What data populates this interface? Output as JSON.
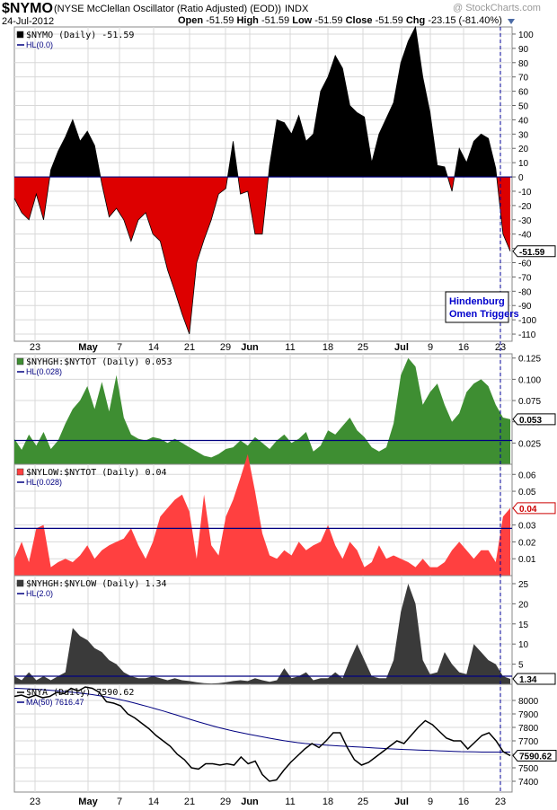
{
  "header": {
    "symbol": "$NYMO",
    "description": "(NYSE McClellan Oscillator (Ratio Adjusted) (EOD))",
    "exchange": "INDX",
    "watermark": "@ StockCharts.com",
    "date": "24-Jul-2012",
    "ohlc": {
      "open_label": "Open",
      "open": "-51.59",
      "high_label": "High",
      "high": "-51.59",
      "low_label": "Low",
      "low": "-51.59",
      "close_label": "Close",
      "close": "-51.59",
      "chg_label": "Chg",
      "chg": "-23.15 (-81.40%)"
    }
  },
  "x_axis": {
    "labels": [
      {
        "text": "23",
        "bold": false
      },
      {
        "text": "May",
        "bold": true
      },
      {
        "text": "7",
        "bold": false
      },
      {
        "text": "14",
        "bold": false
      },
      {
        "text": "21",
        "bold": false
      },
      {
        "text": "29",
        "bold": false
      },
      {
        "text": "Jun",
        "bold": true
      },
      {
        "text": "11",
        "bold": false
      },
      {
        "text": "18",
        "bold": false
      },
      {
        "text": "25",
        "bold": false
      },
      {
        "text": "Jul",
        "bold": true
      },
      {
        "text": "9",
        "bold": false
      },
      {
        "text": "16",
        "bold": false
      },
      {
        "text": "23",
        "bold": false
      }
    ]
  },
  "annotation": {
    "line1": "Hindenburg",
    "line2": "Omen Triggers"
  },
  "colors": {
    "black_fill": "#000000",
    "red_fill": "#dd0000",
    "green_fill": "#3e8e32",
    "light_red_fill": "#ff4040",
    "gray_fill": "#3a3a3a",
    "hl_line": "#000080",
    "ma_line": "#000080",
    "marker": "#000099",
    "grid": "#d8d8d8"
  },
  "chart_data": [
    {
      "type": "area",
      "panel": "nymo",
      "legend": "$NYMO (Daily) -51.59",
      "hl_legend": "HL(0.0)",
      "hl_value": 0,
      "last_value_label": "-51.59",
      "ylim": [
        -115,
        105
      ],
      "yticks": [
        100,
        90,
        80,
        70,
        60,
        50,
        40,
        30,
        20,
        10,
        0,
        -10,
        -20,
        -30,
        -40,
        -50,
        -60,
        -70,
        -80,
        -90,
        -100,
        -110
      ],
      "values": [
        -15,
        -25,
        -30,
        -12,
        -30,
        5,
        18,
        28,
        40,
        25,
        32,
        22,
        -5,
        -28,
        -22,
        -30,
        -45,
        -30,
        -25,
        -40,
        -45,
        -65,
        -80,
        -96,
        -110,
        -60,
        -44,
        -30,
        -12,
        -8,
        25,
        -12,
        -10,
        -40,
        -40,
        8,
        40,
        38,
        30,
        43,
        25,
        30,
        60,
        70,
        85,
        76,
        50,
        45,
        42,
        10,
        30,
        41,
        52,
        80,
        95,
        105,
        70,
        45,
        8,
        7,
        -10,
        20,
        10,
        25,
        30,
        27,
        6,
        -40,
        -52
      ]
    },
    {
      "type": "area",
      "panel": "nyhgh",
      "legend": "$NYHGH:$NYTOT (Daily) 0.053",
      "hl_legend": "HL(0.028)",
      "hl_value": 0.028,
      "last_value_label": "0.053",
      "ylim": [
        0,
        0.13
      ],
      "yticks": [
        0.125,
        0.1,
        0.075,
        0.05,
        0.025
      ],
      "values": [
        0.03,
        0.017,
        0.035,
        0.022,
        0.038,
        0.018,
        0.028,
        0.048,
        0.065,
        0.075,
        0.092,
        0.065,
        0.097,
        0.062,
        0.105,
        0.055,
        0.035,
        0.03,
        0.028,
        0.032,
        0.03,
        0.025,
        0.03,
        0.025,
        0.02,
        0.015,
        0.01,
        0.008,
        0.012,
        0.018,
        0.02,
        0.028,
        0.022,
        0.032,
        0.025,
        0.018,
        0.028,
        0.035,
        0.025,
        0.03,
        0.038,
        0.015,
        0.022,
        0.04,
        0.035,
        0.045,
        0.055,
        0.04,
        0.032,
        0.02,
        0.015,
        0.02,
        0.048,
        0.105,
        0.125,
        0.115,
        0.07,
        0.085,
        0.095,
        0.07,
        0.05,
        0.06,
        0.085,
        0.095,
        0.1,
        0.092,
        0.07,
        0.055,
        0.053
      ]
    },
    {
      "type": "area",
      "panel": "nylow",
      "legend": "$NYLOW:$NYTOT (Daily) 0.04",
      "hl_legend": "HL(0.028)",
      "hl_value": 0.028,
      "last_value_label": "0.04",
      "ylim": [
        0,
        0.066
      ],
      "yticks": [
        0.06,
        0.05,
        0.04,
        0.03,
        0.02,
        0.01
      ],
      "values": [
        0.01,
        0.02,
        0.008,
        0.028,
        0.03,
        0.005,
        0.008,
        0.01,
        0.008,
        0.012,
        0.018,
        0.01,
        0.015,
        0.018,
        0.02,
        0.022,
        0.028,
        0.018,
        0.01,
        0.02,
        0.035,
        0.04,
        0.045,
        0.048,
        0.038,
        0.01,
        0.048,
        0.018,
        0.012,
        0.035,
        0.045,
        0.058,
        0.072,
        0.05,
        0.025,
        0.012,
        0.01,
        0.015,
        0.012,
        0.02,
        0.015,
        0.018,
        0.02,
        0.03,
        0.018,
        0.01,
        0.02,
        0.015,
        0.005,
        0.008,
        0.018,
        0.01,
        0.012,
        0.01,
        0.008,
        0.005,
        0.01,
        0.005,
        0.005,
        0.008,
        0.015,
        0.02,
        0.015,
        0.01,
        0.015,
        0.015,
        0.008,
        0.035,
        0.04
      ]
    },
    {
      "type": "area",
      "panel": "ratio",
      "legend": "$NYHGH:$NYLOW (Daily) 1.34",
      "hl_legend": "HL(2.0)",
      "hl_value": 2.0,
      "last_value_label": "1.34",
      "ylim": [
        0,
        27
      ],
      "yticks": [
        25,
        20,
        15,
        10,
        5
      ],
      "values": [
        2,
        1,
        3,
        1,
        2,
        1,
        2,
        3,
        14,
        12,
        11,
        9,
        8,
        6,
        5,
        3,
        2,
        1.5,
        1.5,
        2,
        1.5,
        1,
        1.5,
        1,
        0.8,
        0.5,
        0.3,
        0.2,
        0.3,
        0.5,
        0.8,
        1,
        0.8,
        1.5,
        1,
        0.6,
        1,
        4,
        1.5,
        2,
        3,
        1,
        1.5,
        1.5,
        3,
        1.5,
        6,
        10,
        6,
        2,
        1.5,
        1.5,
        6,
        18,
        25,
        20,
        6,
        2.5,
        3,
        8,
        5,
        3,
        2.5,
        10,
        8,
        6,
        5,
        2,
        1.34
      ]
    },
    {
      "type": "line",
      "panel": "nya",
      "legend": "$NYA (Daily) 7590.62",
      "ma_legend": "MA(50) 7616.47",
      "last_value_label": "7590.62",
      "ylim": [
        7320,
        8120
      ],
      "yticks": [
        8000,
        7900,
        7800,
        7700,
        7600,
        7500,
        7400
      ],
      "values": [
        8030,
        8040,
        8020,
        8040,
        8020,
        8030,
        8060,
        8050,
        8090,
        8070,
        8100,
        8090,
        8060,
        7990,
        7980,
        7960,
        7900,
        7870,
        7830,
        7790,
        7740,
        7700,
        7660,
        7600,
        7560,
        7500,
        7490,
        7530,
        7530,
        7520,
        7530,
        7520,
        7580,
        7530,
        7550,
        7450,
        7400,
        7410,
        7480,
        7540,
        7590,
        7640,
        7680,
        7650,
        7700,
        7760,
        7760,
        7650,
        7560,
        7520,
        7540,
        7580,
        7620,
        7660,
        7700,
        7680,
        7740,
        7800,
        7850,
        7820,
        7770,
        7720,
        7700,
        7700,
        7640,
        7690,
        7740,
        7760,
        7700,
        7620,
        7590
      ],
      "ma_values": [
        8090,
        8088,
        8086,
        8083,
        8080,
        8076,
        8072,
        8067,
        8062,
        8056,
        8050,
        8043,
        8035,
        8026,
        8016,
        8005,
        7993,
        7980,
        7966,
        7952,
        7937,
        7922,
        7906,
        7890,
        7873,
        7857,
        7841,
        7826,
        7811,
        7797,
        7784,
        7772,
        7761,
        7750,
        7740,
        7730,
        7720,
        7711,
        7702,
        7694,
        7687,
        7681,
        7676,
        7672,
        7668,
        7665,
        7662,
        7659,
        7656,
        7653,
        7650,
        7647,
        7644,
        7641,
        7638,
        7636,
        7634,
        7632,
        7630,
        7628,
        7626,
        7624,
        7622,
        7620,
        7619,
        7618,
        7617,
        7617,
        7616.5,
        7616.5,
        7616.47
      ]
    }
  ]
}
